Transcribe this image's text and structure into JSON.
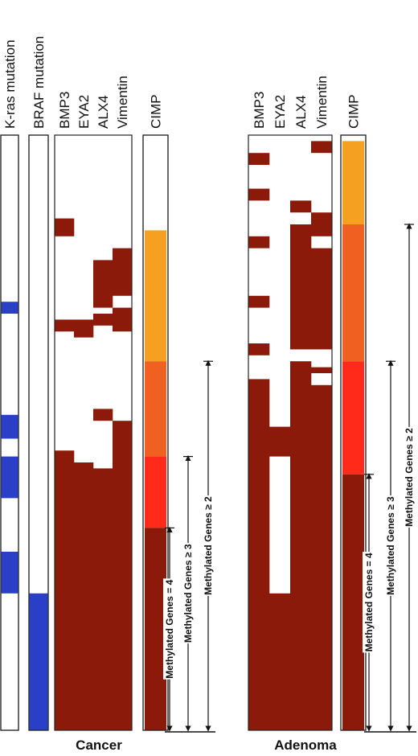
{
  "chart_data": {
    "type": "heatmap",
    "colors": {
      "methylated": "#8b1a0a",
      "mutation": "#2a3fc8",
      "cimp_2": "#f5a020",
      "cimp_3": "#f06020",
      "cimp_4": "#ff2a1a",
      "cimp_5": "#8b1a0a",
      "border": "#222222"
    },
    "panels": [
      {
        "label": "Cancer",
        "n_samples": 100,
        "mutation_columns": [
          {
            "label": "K-ras mutation",
            "positive_ranges": [
              [
                28,
                30
              ],
              [
                47,
                51
              ],
              [
                54,
                61
              ],
              [
                70,
                77
              ]
            ]
          },
          {
            "label": "BRAF mutation",
            "positive_ranges": [
              [
                77,
                100
              ]
            ]
          }
        ],
        "gene_columns": [
          {
            "label": "BMP3",
            "methylated_ranges": [
              [
                14,
                17
              ],
              [
                31,
                33
              ],
              [
                53,
                100
              ]
            ]
          },
          {
            "label": "EYA2",
            "methylated_ranges": [
              [
                31,
                34
              ],
              [
                55,
                100
              ]
            ]
          },
          {
            "label": "ALX4",
            "methylated_ranges": [
              [
                21,
                29
              ],
              [
                30,
                32
              ],
              [
                46,
                48
              ],
              [
                56,
                100
              ]
            ]
          },
          {
            "label": "Vimentin",
            "methylated_ranges": [
              [
                19,
                27
              ],
              [
                29,
                33
              ],
              [
                48,
                100
              ]
            ]
          }
        ],
        "cimp": {
          "label": "CIMP",
          "segments": [
            {
              "methylated_genes": 2,
              "range": [
                16,
                38
              ]
            },
            {
              "methylated_genes": 3,
              "range": [
                38,
                54
              ]
            },
            {
              "methylated_genes": 4,
              "range": [
                54,
                66
              ]
            },
            {
              "methylated_genes": 5,
              "range": [
                66,
                100
              ]
            }
          ]
        },
        "brackets": [
          {
            "label": "Methylated Genes = 4",
            "range": [
              66,
              100
            ]
          },
          {
            "label": "Methylated Genes ≥ 3",
            "range": [
              54,
              100
            ]
          },
          {
            "label": "Methylated Genes ≥ 2",
            "range": [
              38,
              100
            ]
          }
        ]
      },
      {
        "label": "Adenoma",
        "n_samples": 100,
        "gene_columns": [
          {
            "label": "BMP3",
            "methylated_ranges": [
              [
                3,
                5
              ],
              [
                9,
                11
              ],
              [
                17,
                19
              ],
              [
                27,
                29
              ],
              [
                35,
                37
              ],
              [
                41,
                100
              ]
            ]
          },
          {
            "label": "EYA2",
            "methylated_ranges": [
              [
                49,
                54
              ],
              [
                77,
                100
              ]
            ]
          },
          {
            "label": "ALX4",
            "methylated_ranges": [
              [
                11,
                13
              ],
              [
                15,
                36
              ],
              [
                38,
                100
              ]
            ]
          },
          {
            "label": "Vimentin",
            "methylated_ranges": [
              [
                1,
                3
              ],
              [
                13,
                17
              ],
              [
                19,
                36
              ],
              [
                39,
                40
              ],
              [
                42,
                100
              ]
            ]
          }
        ],
        "cimp": {
          "label": "CIMP",
          "segments": [
            {
              "methylated_genes": 2,
              "range": [
                1,
                15
              ]
            },
            {
              "methylated_genes": 3,
              "range": [
                15,
                38
              ]
            },
            {
              "methylated_genes": 4,
              "range": [
                38,
                57
              ]
            },
            {
              "methylated_genes": 5,
              "range": [
                57,
                100
              ]
            }
          ]
        },
        "brackets": [
          {
            "label": "Methylated Genes = 4",
            "range": [
              57,
              100
            ]
          },
          {
            "label": "Methylated Genes ≥ 3",
            "range": [
              38,
              100
            ]
          },
          {
            "label": "Methylated Genes ≥ 2",
            "range": [
              15,
              100
            ]
          }
        ]
      }
    ]
  }
}
